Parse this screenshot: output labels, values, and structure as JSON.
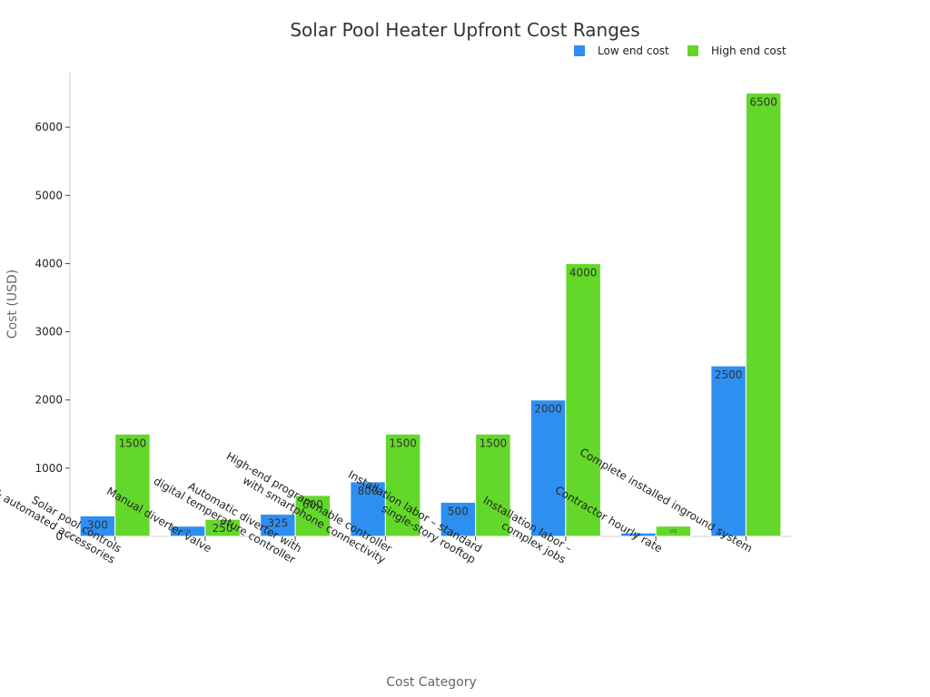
{
  "chart_data": {
    "type": "bar",
    "title": "Solar Pool Heater Upfront Cost Ranges",
    "xlabel": "Cost Category",
    "ylabel": "Cost (USD)",
    "ylim": [
      0,
      6800
    ],
    "yticks": [
      0,
      1000,
      2000,
      3000,
      4000,
      5000,
      6000
    ],
    "grid": false,
    "legend_position": "top-right",
    "categories": [
      [
        "Solar pool controls",
        "& automated accessories"
      ],
      [
        "Manual diverter valve"
      ],
      [
        "Automatic diverter with",
        "digital temperature controller"
      ],
      [
        "High-end programmable controller",
        "with smartphone connectivity"
      ],
      [
        "Installation labor – standard",
        "single-story rooftop"
      ],
      [
        "Installation labor –",
        "complex jobs"
      ],
      [
        "Contractor hourly rate"
      ],
      [
        "Complete installed inground system"
      ]
    ],
    "series": [
      {
        "name": "Low end cost",
        "color": "#2e8ff2",
        "values": [
          300,
          150,
          325,
          800,
          500,
          2000,
          50,
          2500
        ]
      },
      {
        "name": "High end cost",
        "color": "#63d82a",
        "values": [
          1500,
          250,
          600,
          1500,
          1500,
          4000,
          150,
          6500
        ]
      }
    ]
  }
}
